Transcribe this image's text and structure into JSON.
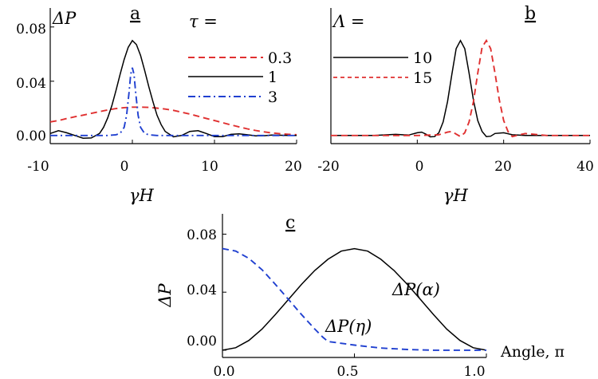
{
  "chart_data": [
    {
      "panel": "a",
      "type": "line",
      "ylabel": "ΔP",
      "xlabel": "γH",
      "legend_title": "τ =",
      "xlim": [
        -10,
        20
      ],
      "ylim": [
        -0.006,
        0.094
      ],
      "xticks": [
        -10,
        0,
        10,
        20
      ],
      "yticks": [
        0.0,
        0.04,
        0.08
      ],
      "xtick_labels": [
        "-10",
        "0",
        "10",
        "20"
      ],
      "ytick_labels": [
        "0.00",
        "0.04",
        "0.08"
      ],
      "grid": false,
      "legend_position": "top-right",
      "series": [
        {
          "name": "0.3",
          "color": "#e03030",
          "dash": "dashed",
          "x": [
            -10,
            -9,
            -8,
            -7,
            -6,
            -5,
            -4,
            -3,
            -2,
            -1,
            0,
            1,
            2,
            3,
            4,
            5,
            6,
            7,
            8,
            9,
            10,
            11,
            12,
            13,
            14,
            15,
            16,
            17,
            18,
            19,
            20
          ],
          "y": [
            0.01,
            0.011,
            0.0125,
            0.0138,
            0.015,
            0.0163,
            0.0176,
            0.0188,
            0.0198,
            0.0205,
            0.0209,
            0.0209,
            0.0207,
            0.0202,
            0.0195,
            0.0185,
            0.0172,
            0.0158,
            0.0142,
            0.0126,
            0.011,
            0.0094,
            0.0078,
            0.0063,
            0.0049,
            0.0037,
            0.0027,
            0.0019,
            0.0013,
            0.0009,
            0.0006
          ]
        },
        {
          "name": "1",
          "color": "#000000",
          "dash": "solid",
          "x": [
            -10,
            -9,
            -8,
            -7,
            -6,
            -5,
            -4,
            -3.5,
            -3,
            -2.5,
            -2,
            -1.5,
            -1,
            -0.5,
            0,
            0.5,
            1,
            1.5,
            2,
            2.5,
            3,
            3.5,
            4,
            5,
            6,
            7,
            8,
            9,
            10,
            11,
            12,
            13,
            14,
            15,
            16,
            17,
            18,
            19,
            20
          ],
          "y": [
            0.0015,
            0.0035,
            0.002,
            0.0,
            -0.002,
            -0.0018,
            0.0015,
            0.006,
            0.013,
            0.022,
            0.033,
            0.045,
            0.056,
            0.065,
            0.07,
            0.067,
            0.059,
            0.048,
            0.036,
            0.025,
            0.015,
            0.008,
            0.003,
            -0.001,
            0.0,
            0.003,
            0.0035,
            0.0015,
            -0.0008,
            -0.0008,
            0.0008,
            0.0012,
            0.0005,
            -0.0003,
            -0.0002,
            0.0003,
            0.0002,
            0.0,
            0.0
          ]
        },
        {
          "name": "3",
          "color": "#2040d0",
          "dash": "dashdot",
          "x": [
            -10,
            -5,
            -3,
            -2,
            -1.5,
            -1,
            -0.7,
            -0.4,
            -0.2,
            0,
            0.2,
            0.4,
            0.7,
            1,
            1.5,
            2,
            3,
            5,
            10,
            15,
            20
          ],
          "y": [
            0.0,
            0.0,
            0.0,
            0.0005,
            0.0015,
            0.006,
            0.015,
            0.032,
            0.045,
            0.05,
            0.045,
            0.032,
            0.015,
            0.006,
            0.0015,
            0.0005,
            0.0,
            0.0,
            0.0,
            0.0,
            0.0
          ]
        }
      ]
    },
    {
      "panel": "b",
      "type": "line",
      "ylabel": "",
      "xlabel": "γH",
      "legend_title": "Λ =",
      "xlim": [
        -20,
        40
      ],
      "ylim": [
        -0.006,
        0.094
      ],
      "xticks": [
        -20,
        0,
        20,
        40
      ],
      "xtick_labels": [
        "-20",
        "0",
        "20",
        "40"
      ],
      "grid": false,
      "legend_position": "top-left",
      "series": [
        {
          "name": "10",
          "color": "#000000",
          "dash": "solid",
          "x": [
            -20,
            -10,
            -5,
            -2,
            0,
            1,
            2,
            3,
            4,
            5,
            6,
            7,
            8,
            9,
            10,
            11,
            12,
            13,
            14,
            15,
            16,
            17,
            18,
            20,
            22,
            25,
            30,
            35,
            40
          ],
          "y": [
            0.0,
            0.0,
            0.0008,
            0.0003,
            0.002,
            0.0025,
            0.001,
            -0.001,
            -0.0008,
            0.002,
            0.01,
            0.025,
            0.045,
            0.064,
            0.07,
            0.064,
            0.046,
            0.026,
            0.011,
            0.003,
            -0.0008,
            -0.0005,
            0.0015,
            0.002,
            0.0005,
            0.0,
            0.0,
            0.0,
            0.0
          ]
        },
        {
          "name": "15",
          "color": "#e03030",
          "dash": "dashed",
          "x": [
            -20,
            0,
            5,
            7,
            8,
            9,
            10,
            11,
            12,
            13,
            14,
            15,
            16,
            17,
            18,
            19,
            20,
            21,
            22,
            23,
            25,
            30,
            35,
            40
          ],
          "y": [
            0.0,
            0.0,
            0.0005,
            0.0025,
            0.003,
            0.001,
            -0.0008,
            0.002,
            0.01,
            0.025,
            0.046,
            0.065,
            0.07,
            0.064,
            0.046,
            0.026,
            0.011,
            0.003,
            -0.0008,
            0.0,
            0.0015,
            0.0,
            0.0,
            0.0
          ]
        }
      ]
    },
    {
      "panel": "c",
      "type": "line",
      "ylabel": "ΔP",
      "xlabel": "Angle, π",
      "xlim": [
        0,
        1
      ],
      "ylim": [
        -0.005,
        0.094
      ],
      "xticks": [
        0.0,
        0.5,
        1.0
      ],
      "yticks": [
        0.0,
        0.04,
        0.08
      ],
      "xtick_labels": [
        "0.0",
        "0.5",
        "1.0"
      ],
      "ytick_labels": [
        "0.00",
        "0.04",
        "0.08"
      ],
      "grid": false,
      "annotations": [
        "ΔP(α)",
        "ΔP(η)"
      ],
      "series": [
        {
          "name": "ΔP(α)",
          "color": "#000000",
          "dash": "solid",
          "x": [
            0,
            0.05,
            0.1,
            0.15,
            0.2,
            0.25,
            0.3,
            0.35,
            0.4,
            0.45,
            0.5,
            0.55,
            0.6,
            0.64,
            0.65,
            0.66,
            0.7,
            0.75,
            0.8,
            0.85,
            0.9,
            0.95,
            1.0
          ],
          "y": [
            0.0,
            0.0017,
            0.0067,
            0.0145,
            0.0245,
            0.035,
            0.0455,
            0.055,
            0.0627,
            0.0683,
            0.07,
            0.0683,
            0.0627,
            0.0565,
            0.055,
            0.053,
            0.0455,
            0.035,
            0.0245,
            0.0145,
            0.0067,
            0.0017,
            0.0
          ]
        },
        {
          "name": "ΔP(η)",
          "color": "#2040d0",
          "dash": "dashed",
          "x": [
            0,
            0.05,
            0.1,
            0.15,
            0.2,
            0.25,
            0.3,
            0.35,
            0.38,
            0.39,
            0.4,
            0.5,
            0.55,
            0.6,
            0.65,
            0.7,
            0.75,
            0.8,
            0.85,
            0.9,
            0.95,
            1.0
          ],
          "y": [
            0.07,
            0.0683,
            0.0633,
            0.0555,
            0.0455,
            0.035,
            0.0245,
            0.0145,
            0.009,
            0.0075,
            0.006,
            0.0035,
            0.0025,
            0.0015,
            0.001,
            0.0005,
            0.0002,
            0.0,
            0.0,
            0.0,
            0.0,
            0.0
          ]
        }
      ]
    }
  ]
}
